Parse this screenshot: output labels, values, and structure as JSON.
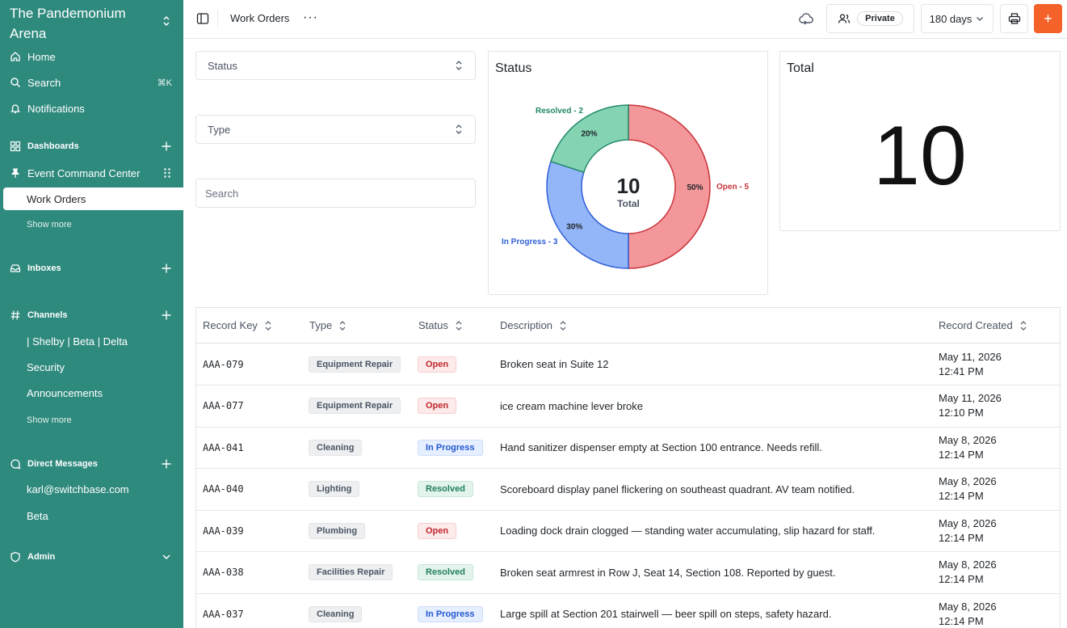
{
  "sidebar": {
    "workspace": "The Pandemonium Arena",
    "home": "Home",
    "search": "Search",
    "search_shortcut": "⌘K",
    "notifications": "Notifications",
    "dashboards": "Dashboards",
    "pinned": "Event Command Center",
    "active_item": "Work Orders",
    "show_more_1": "Show more",
    "inboxes": "Inboxes",
    "channels": "Channels",
    "channel_items": [
      "| Shelby | Beta | Delta",
      "Security",
      "Announcements"
    ],
    "show_more_2": "Show more",
    "direct_messages": "Direct Messages",
    "dm_items": [
      "karl@switchbase.com",
      "Beta"
    ],
    "admin": "Admin"
  },
  "topbar": {
    "title": "Work Orders",
    "more": "···",
    "visibility": "Private",
    "range": "180 days",
    "add": "+"
  },
  "filters": {
    "status": "Status",
    "type": "Type",
    "search_placeholder": "Search"
  },
  "status_card": {
    "title": "Status"
  },
  "total_card": {
    "title": "Total",
    "value": "10"
  },
  "chart_data": {
    "type": "pie",
    "title": "Status",
    "center_value": "10",
    "center_label": "Total",
    "slices": [
      {
        "name": "Open",
        "value": 5,
        "pct": "50%",
        "label": "Open - 5",
        "color": "#f4979a",
        "stroke": "#c9343a",
        "label_color": "#c9343a"
      },
      {
        "name": "In Progress",
        "value": 3,
        "pct": "30%",
        "label": "In Progress - 3",
        "color": "#92b6f7",
        "stroke": "#2f5fd6",
        "label_color": "#2f5fd6"
      },
      {
        "name": "Resolved",
        "value": 2,
        "pct": "20%",
        "label": "Resolved - 2",
        "color": "#84d4b4",
        "stroke": "#23886a",
        "label_color": "#23886a"
      }
    ]
  },
  "table": {
    "columns": [
      "Record Key",
      "Type",
      "Status",
      "Description",
      "Record Created"
    ],
    "rows": [
      {
        "key": "AAA-079",
        "type": "Equipment Repair",
        "status": "Open",
        "desc": "Broken seat in Suite 12",
        "date": "May 11, 2026",
        "time": "12:41 PM"
      },
      {
        "key": "AAA-077",
        "type": "Equipment Repair",
        "status": "Open",
        "desc": "ice cream machine lever broke",
        "date": "May 11, 2026",
        "time": "12:10 PM"
      },
      {
        "key": "AAA-041",
        "type": "Cleaning",
        "status": "In Progress",
        "desc": "Hand sanitizer dispenser empty at Section 100 entrance. Needs refill.",
        "date": "May 8, 2026",
        "time": "12:14 PM"
      },
      {
        "key": "AAA-040",
        "type": "Lighting",
        "status": "Resolved",
        "desc": "Scoreboard display panel flickering on southeast quadrant. AV team notified.",
        "date": "May 8, 2026",
        "time": "12:14 PM"
      },
      {
        "key": "AAA-039",
        "type": "Plumbing",
        "status": "Open",
        "desc": "Loading dock drain clogged — standing water accumulating, slip hazard for staff.",
        "date": "May 8, 2026",
        "time": "12:14 PM"
      },
      {
        "key": "AAA-038",
        "type": "Facilities Repair",
        "status": "Resolved",
        "desc": "Broken seat armrest in Row J, Seat 14, Section 108. Reported by guest.",
        "date": "May 8, 2026",
        "time": "12:14 PM"
      },
      {
        "key": "AAA-037",
        "type": "Cleaning",
        "status": "In Progress",
        "desc": "Large spill at Section 201 stairwell — beer spill on steps, safety hazard.",
        "date": "May 8, 2026",
        "time": "12:14 PM"
      }
    ]
  }
}
